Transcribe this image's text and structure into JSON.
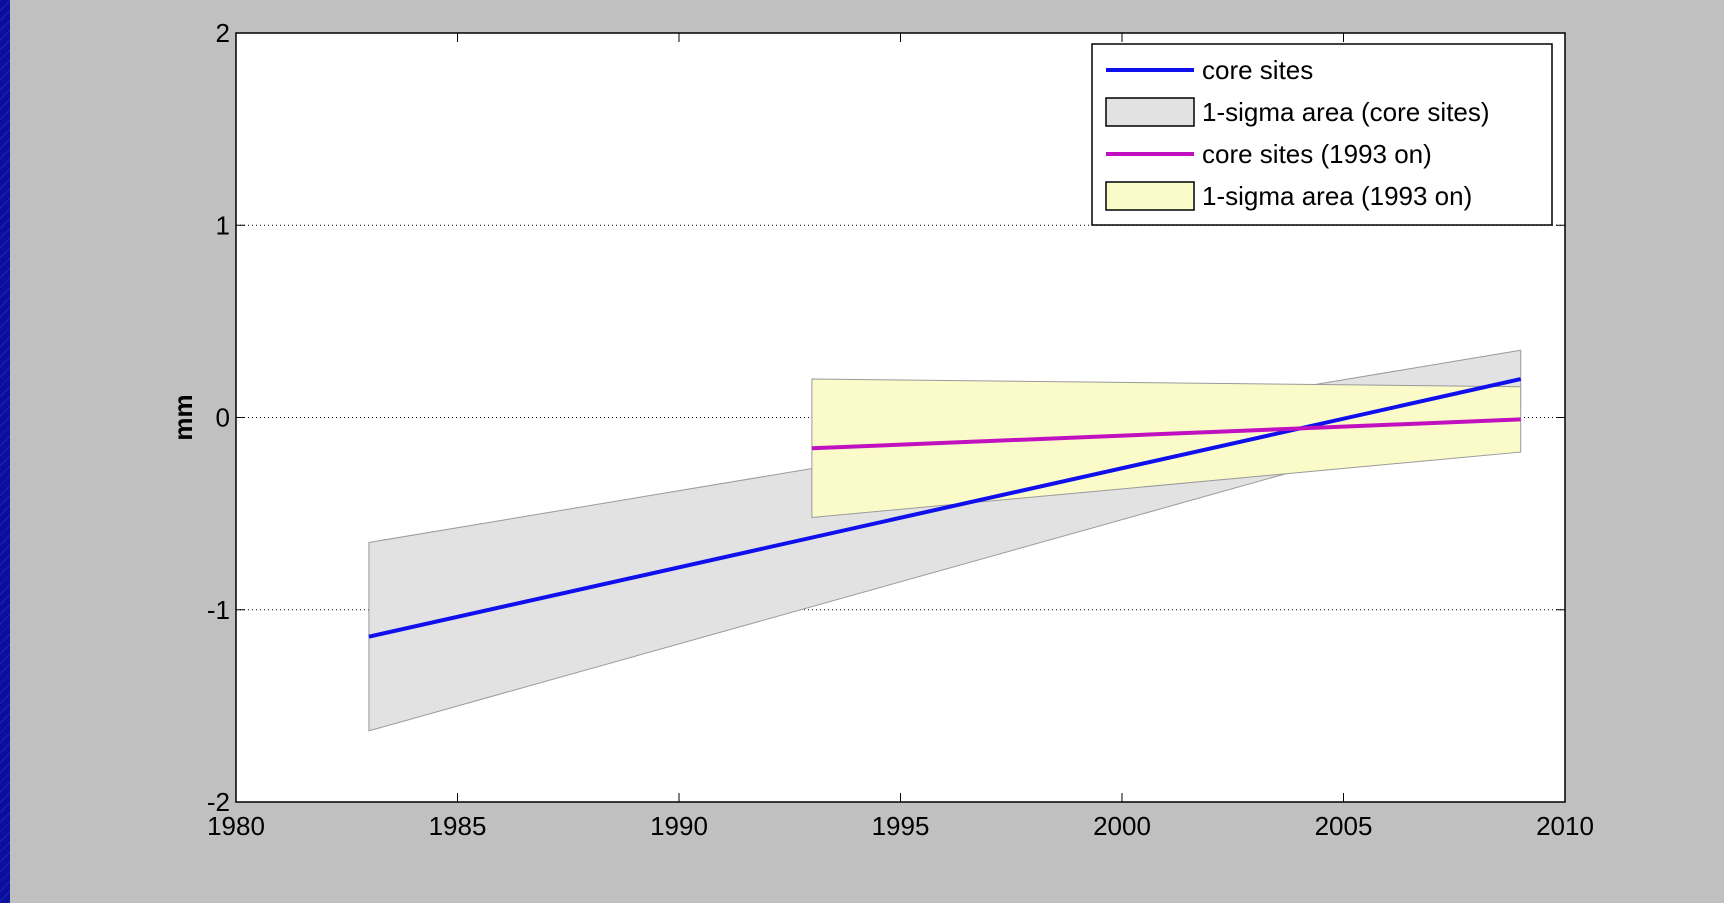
{
  "chart_data": {
    "type": "line",
    "title": "",
    "xlabel": "",
    "ylabel": "mm",
    "xlim": [
      1980,
      2010
    ],
    "ylim": [
      -2,
      2
    ],
    "xticks": [
      1980,
      1985,
      1990,
      1995,
      2000,
      2005,
      2010
    ],
    "yticks": [
      -2,
      -1,
      0,
      1,
      2
    ],
    "grid": "y-dotted",
    "legend_position": "top-right",
    "colors": {
      "core": "#1010ee",
      "recent": "#c010c0",
      "core_band": "#e2e2e2",
      "recent_band": "#fbfbc9",
      "panel": "#c0c0c0",
      "slide": "#0b0f9e"
    },
    "series": [
      {
        "name": "core sites",
        "kind": "line",
        "color_key": "core",
        "x": [
          1983,
          2009
        ],
        "y": [
          -1.14,
          0.2
        ]
      },
      {
        "name": "1-sigma area (core sites)",
        "kind": "band",
        "color_key": "core_band",
        "x": [
          1983,
          2009
        ],
        "upper": [
          -0.65,
          0.35
        ],
        "lower": [
          -1.63,
          0.05
        ]
      },
      {
        "name": "core sites (1993 on)",
        "kind": "line",
        "color_key": "recent",
        "x": [
          1993,
          2009
        ],
        "y": [
          -0.16,
          -0.01
        ]
      },
      {
        "name": "1-sigma area (1993 on)",
        "kind": "band",
        "color_key": "recent_band",
        "x": [
          1993,
          2009
        ],
        "upper": [
          0.2,
          0.16
        ],
        "lower": [
          -0.52,
          -0.18
        ]
      }
    ]
  }
}
